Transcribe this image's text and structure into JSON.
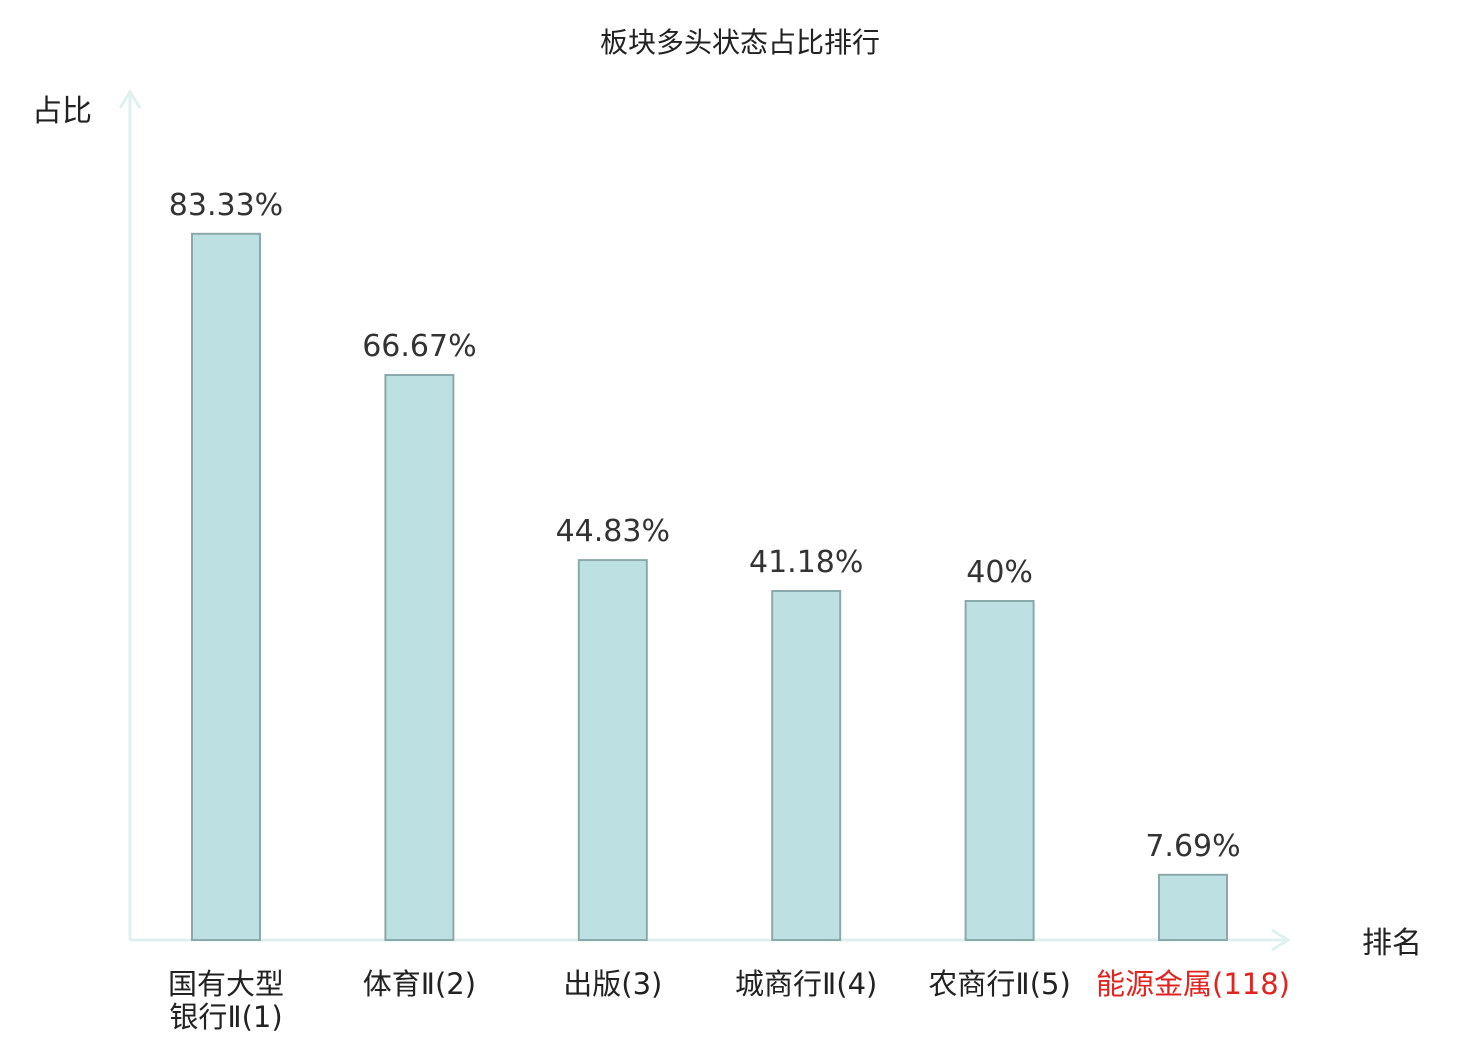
{
  "chart_data": {
    "type": "bar",
    "title": "板块多头状态占比排行",
    "ylabel": "占比",
    "xlabel": "排名",
    "ylim": [
      0,
      100
    ],
    "grid": false,
    "legend": "none",
    "categories": [
      {
        "name_lines": [
          "国有大型",
          "银行Ⅱ"
        ],
        "rank": "(1)",
        "highlight": false
      },
      {
        "name_lines": [
          "体育Ⅱ"
        ],
        "rank": "(2)",
        "highlight": false
      },
      {
        "name_lines": [
          "出版"
        ],
        "rank": "(3)",
        "highlight": false
      },
      {
        "name_lines": [
          "城商行Ⅱ"
        ],
        "rank": "(4)",
        "highlight": false
      },
      {
        "name_lines": [
          "农商行Ⅱ"
        ],
        "rank": "(5)",
        "highlight": false
      },
      {
        "name_lines": [
          "能源金属"
        ],
        "rank": "(118)",
        "highlight": true
      }
    ],
    "values": [
      83.33,
      66.67,
      44.83,
      41.18,
      40,
      7.69
    ],
    "value_labels": [
      "83.33%",
      "66.67%",
      "44.83%",
      "41.18%",
      "40%",
      "7.69%"
    ]
  },
  "colors": {
    "bar_fill": "#bde1e3",
    "bar_stroke": "#8aa9aa",
    "axis": "#dff1ee",
    "text": "#222222",
    "highlight": "#e0241f"
  }
}
